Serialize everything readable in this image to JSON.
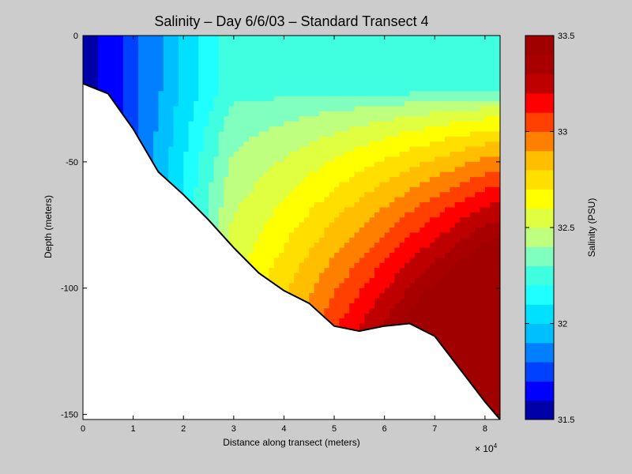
{
  "chart_data": {
    "type": "filled-contour",
    "title": "Salinity – Day 6/6/03 – Standard Transect 4",
    "xlabel": "Distance along transect (meters)",
    "ylabel": "Depth (meters)",
    "x_multiplier_label": "× 10",
    "x_multiplier_exp": "4",
    "xlim": [
      0,
      83000
    ],
    "ylim": [
      -152,
      0
    ],
    "xticks": [
      0,
      10000,
      20000,
      30000,
      40000,
      50000,
      60000,
      70000,
      80000
    ],
    "xtick_labels": [
      "0",
      "1",
      "2",
      "3",
      "4",
      "5",
      "6",
      "7",
      "8"
    ],
    "yticks": [
      0,
      -50,
      -100,
      -150
    ],
    "ytick_labels": [
      "0",
      "-50",
      "-100",
      "-150"
    ],
    "bottom_profile": {
      "x": [
        0,
        5000,
        10000,
        15000,
        20000,
        25000,
        30000,
        35000,
        40000,
        45000,
        50000,
        55000,
        60000,
        65000,
        70000,
        75000,
        80000,
        83000
      ],
      "depth": [
        -19,
        -23,
        -37,
        -54,
        -63,
        -73,
        -84,
        -94,
        -101,
        -106,
        -115,
        -117,
        -115,
        -114,
        -119,
        -132,
        -145,
        -152
      ]
    },
    "contour_levels": [
      31.5,
      31.6,
      31.7,
      31.8,
      31.9,
      32.0,
      32.1,
      32.2,
      32.3,
      32.4,
      32.5,
      32.6,
      32.7,
      32.8,
      32.9,
      33.0,
      33.1,
      33.2,
      33.3,
      33.4,
      33.5
    ],
    "colorbar": {
      "label": "Salinity (PSU)",
      "min": 31.5,
      "max": 33.5,
      "ticks": [
        31.5,
        32,
        32.5,
        33,
        33.5
      ],
      "tick_labels": [
        "31.5",
        "32",
        "32.5",
        "33",
        "33.5"
      ],
      "colors": [
        "#0000a8",
        "#0000ff",
        "#0040ff",
        "#0080ff",
        "#00bfff",
        "#00e0ff",
        "#20ffff",
        "#40ffe0",
        "#80ffbf",
        "#bfff80",
        "#e0ff40",
        "#ffff00",
        "#ffdf00",
        "#ffbf00",
        "#ff8000",
        "#ff4000",
        "#ff0000",
        "#bf0000",
        "#a80000",
        "#a00000"
      ]
    },
    "grid": false,
    "legend": "none"
  }
}
